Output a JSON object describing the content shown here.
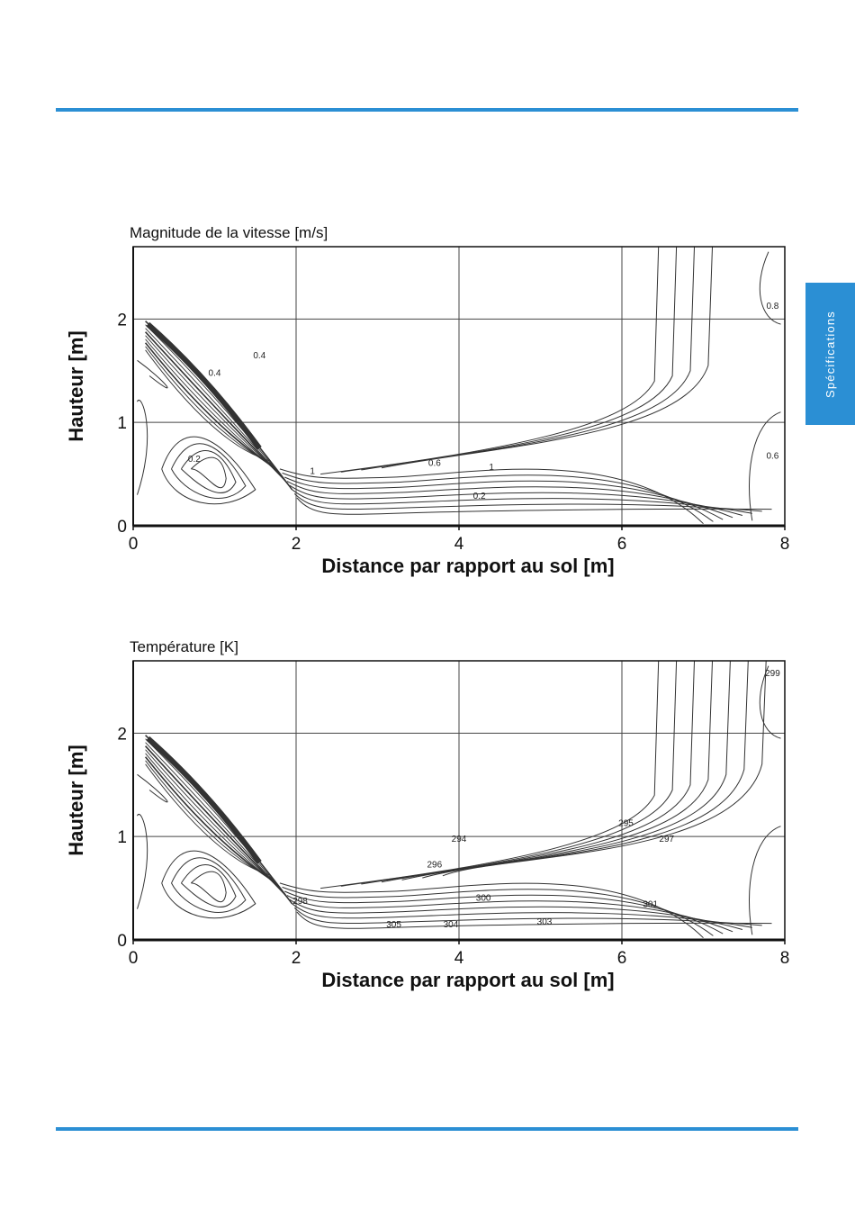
{
  "page": {
    "side_tab_label": "Spécifications",
    "colors": {
      "accent": "#2b8fd4"
    }
  },
  "chart_data": [
    {
      "type": "contour",
      "title": "Magnitude de la vitesse [m/s]",
      "xlabel": "Distance par rapport au sol [m]",
      "ylabel": "Hauteur [m]",
      "xlim": [
        0,
        8
      ],
      "ylim": [
        0,
        2.7
      ],
      "xticks": [
        "0",
        "2",
        "4",
        "6",
        "8"
      ],
      "yticks": [
        "0",
        "1",
        "2"
      ],
      "grid": true,
      "contour_labels": [
        "0.2",
        "0.4",
        "0.6",
        "1",
        "0.2",
        "0.4",
        "1",
        "0.8",
        "0.6"
      ]
    },
    {
      "type": "contour",
      "title": "Température [K]",
      "xlabel": "Distance par rapport au sol [m]",
      "ylabel": "Hauteur [m]",
      "xlim": [
        0,
        8
      ],
      "ylim": [
        0,
        2.7
      ],
      "xticks": [
        "0",
        "2",
        "4",
        "6",
        "8"
      ],
      "yticks": [
        "0",
        "1",
        "2"
      ],
      "grid": true,
      "contour_labels": [
        "294",
        "295",
        "296",
        "297",
        "298",
        "299",
        "300",
        "301",
        "303",
        "304",
        "305"
      ]
    }
  ]
}
